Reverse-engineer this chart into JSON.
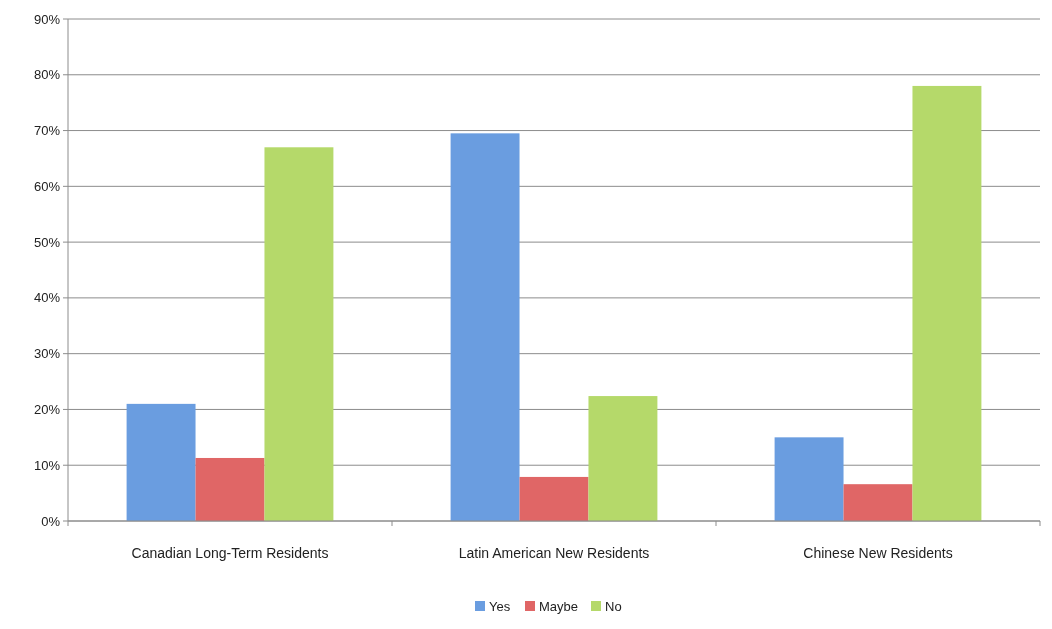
{
  "chart_data": {
    "type": "bar",
    "categories": [
      "Canadian Long-Term Residents",
      "Latin American New Residents",
      "Chinese New Residents"
    ],
    "series": [
      {
        "name": "Yes",
        "color": "#6a9de0",
        "values": [
          21,
          69.5,
          15
        ]
      },
      {
        "name": "Maybe",
        "color": "#e06666",
        "values": [
          11.3,
          7.9,
          6.6
        ]
      },
      {
        "name": "No",
        "color": "#b5d96a",
        "values": [
          67,
          22.4,
          78
        ]
      }
    ],
    "ylim": [
      0,
      90
    ],
    "yticks": [
      {
        "value": 0,
        "label": "0%"
      },
      {
        "value": 10,
        "label": "10%"
      },
      {
        "value": 20,
        "label": "20%"
      },
      {
        "value": 30,
        "label": "30%"
      },
      {
        "value": 40,
        "label": "40%"
      },
      {
        "value": 50,
        "label": "50%"
      },
      {
        "value": 60,
        "label": "60%"
      },
      {
        "value": 70,
        "label": "70%"
      },
      {
        "value": 80,
        "label": "80%"
      },
      {
        "value": 90,
        "label": "90%"
      }
    ],
    "grid": "y",
    "legend": "bottom"
  }
}
